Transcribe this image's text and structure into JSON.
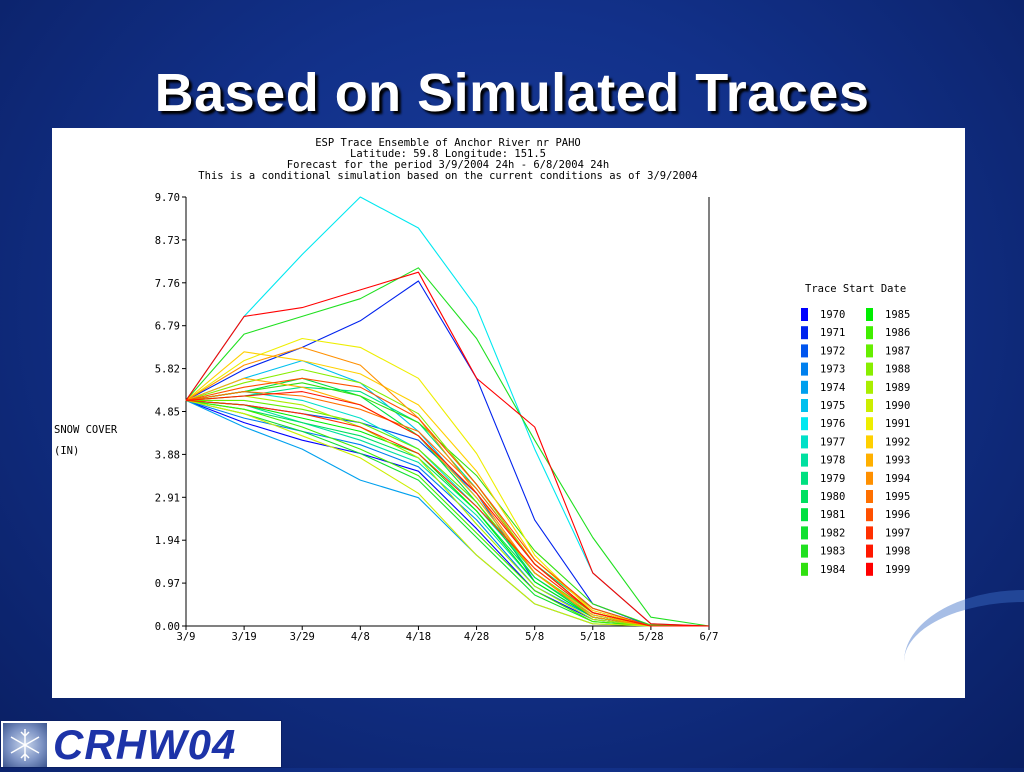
{
  "slide": {
    "title": "Based on Simulated Traces",
    "footer_logo": "CRHW04",
    "snowflake_icon": "snowflake-icon"
  },
  "colors": {
    "background": "#12318a",
    "title": "#ffffff",
    "logo_text": "#1d33a8"
  },
  "chart_data": {
    "type": "line",
    "title_lines": [
      "ESP Trace Ensemble of Anchor River nr PAHO",
      "Latitude: 59.8    Longitude:  151.5",
      "Forecast for the period 3/9/2004 24h - 6/8/2004 24h",
      "This is a conditional simulation based on the current conditions as of 3/9/2004"
    ],
    "ylabel_lines": [
      "SNOW COVER",
      "(IN)"
    ],
    "xlabel": "",
    "x_ticks": [
      "3/9",
      "3/19",
      "3/29",
      "4/8",
      "4/18",
      "4/28",
      "5/8",
      "5/18",
      "5/28",
      "6/7"
    ],
    "y_ticks": [
      "0.00",
      "0.97",
      "1.94",
      "2.91",
      "3.88",
      "4.85",
      "5.82",
      "6.79",
      "7.76",
      "8.73",
      "9.70"
    ],
    "xlim": [
      "3/9",
      "6/7"
    ],
    "ylim": [
      0,
      9.7
    ],
    "grid": false,
    "legend_title": "Trace Start Date",
    "legend_position": "right",
    "x_dates": [
      "3/9",
      "3/19",
      "3/29",
      "4/8",
      "4/18",
      "4/28",
      "5/8",
      "5/18",
      "5/28",
      "6/7"
    ],
    "series": [
      {
        "name": "1970",
        "color": "#0000ff",
        "values": [
          5.1,
          4.6,
          4.2,
          3.9,
          3.5,
          2.2,
          0.8,
          0.15,
          0.0,
          0.0
        ]
      },
      {
        "name": "1971",
        "color": "#0022ee",
        "values": [
          5.1,
          5.8,
          6.3,
          6.9,
          7.8,
          5.6,
          2.4,
          0.5,
          0.0,
          0.0
        ]
      },
      {
        "name": "1972",
        "color": "#0055ee",
        "values": [
          5.1,
          5.0,
          4.8,
          4.6,
          4.2,
          3.0,
          1.0,
          0.2,
          0.0,
          0.0
        ]
      },
      {
        "name": "1973",
        "color": "#0080ee",
        "values": [
          5.1,
          4.7,
          4.4,
          4.1,
          3.6,
          2.4,
          0.9,
          0.2,
          0.0,
          0.0
        ]
      },
      {
        "name": "1974",
        "color": "#00a0ee",
        "values": [
          5.1,
          4.5,
          4.0,
          3.3,
          2.9,
          1.6,
          0.5,
          0.05,
          0.0,
          0.0
        ]
      },
      {
        "name": "1975",
        "color": "#00c0ee",
        "values": [
          5.1,
          5.6,
          6.0,
          5.5,
          4.4,
          2.9,
          1.2,
          0.3,
          0.0,
          0.0
        ]
      },
      {
        "name": "1976",
        "color": "#00e8f0",
        "values": [
          5.1,
          7.0,
          8.4,
          9.7,
          9.0,
          7.2,
          4.0,
          1.2,
          0.05,
          0.0
        ]
      },
      {
        "name": "1977",
        "color": "#00e0c8",
        "values": [
          5.1,
          5.3,
          5.1,
          4.7,
          4.0,
          2.7,
          1.2,
          0.3,
          0.0,
          0.0
        ]
      },
      {
        "name": "1978",
        "color": "#00e0a0",
        "values": [
          5.1,
          5.0,
          4.6,
          4.2,
          3.7,
          2.5,
          1.0,
          0.2,
          0.0,
          0.0
        ]
      },
      {
        "name": "1979",
        "color": "#00e080",
        "values": [
          5.1,
          5.2,
          5.4,
          5.3,
          4.6,
          3.1,
          1.4,
          0.4,
          0.0,
          0.0
        ]
      },
      {
        "name": "1980",
        "color": "#00e060",
        "values": [
          5.1,
          4.9,
          4.6,
          4.3,
          3.8,
          2.6,
          1.1,
          0.25,
          0.0,
          0.0
        ]
      },
      {
        "name": "1981",
        "color": "#00e040",
        "values": [
          5.1,
          5.3,
          5.6,
          5.2,
          4.3,
          2.8,
          1.1,
          0.2,
          0.0,
          0.0
        ]
      },
      {
        "name": "1982",
        "color": "#10e030",
        "values": [
          5.1,
          4.8,
          4.4,
          3.9,
          3.3,
          2.0,
          0.7,
          0.1,
          0.0,
          0.0
        ]
      },
      {
        "name": "1983",
        "color": "#20e020",
        "values": [
          5.1,
          6.6,
          7.0,
          7.4,
          8.1,
          6.5,
          4.2,
          2.0,
          0.2,
          0.0
        ]
      },
      {
        "name": "1984",
        "color": "#30e010",
        "values": [
          5.1,
          5.3,
          5.5,
          5.2,
          4.6,
          3.4,
          1.7,
          0.5,
          0.02,
          0.0
        ]
      },
      {
        "name": "1985",
        "color": "#00ee00",
        "values": [
          5.1,
          5.0,
          4.7,
          4.4,
          3.9,
          2.6,
          1.0,
          0.2,
          0.0,
          0.0
        ]
      },
      {
        "name": "1986",
        "color": "#40ee00",
        "values": [
          5.1,
          4.9,
          4.5,
          4.0,
          3.4,
          2.1,
          0.8,
          0.1,
          0.0,
          0.0
        ]
      },
      {
        "name": "1987",
        "color": "#66ee00",
        "values": [
          5.1,
          5.1,
          4.9,
          4.6,
          4.0,
          2.8,
          1.2,
          0.3,
          0.0,
          0.0
        ]
      },
      {
        "name": "1988",
        "color": "#88ee00",
        "values": [
          5.1,
          5.5,
          5.8,
          5.5,
          4.8,
          3.2,
          1.4,
          0.3,
          0.0,
          0.0
        ]
      },
      {
        "name": "1989",
        "color": "#aaee00",
        "values": [
          5.1,
          5.2,
          5.0,
          4.5,
          3.8,
          2.3,
          0.9,
          0.15,
          0.0,
          0.0
        ]
      },
      {
        "name": "1990",
        "color": "#ccee00",
        "values": [
          5.1,
          4.8,
          4.3,
          3.8,
          3.0,
          1.6,
          0.5,
          0.05,
          0.0,
          0.0
        ]
      },
      {
        "name": "1991",
        "color": "#eeee00",
        "values": [
          5.1,
          6.0,
          6.5,
          6.3,
          5.6,
          3.9,
          1.6,
          0.3,
          0.0,
          0.0
        ]
      },
      {
        "name": "1992",
        "color": "#ffd000",
        "values": [
          5.1,
          6.2,
          6.0,
          5.7,
          5.0,
          3.5,
          1.5,
          0.35,
          0.0,
          0.0
        ]
      },
      {
        "name": "1993",
        "color": "#ffb000",
        "values": [
          5.1,
          5.6,
          5.4,
          5.0,
          4.3,
          2.9,
          1.2,
          0.25,
          0.0,
          0.0
        ]
      },
      {
        "name": "1994",
        "color": "#ff9000",
        "values": [
          5.1,
          5.9,
          6.3,
          5.9,
          4.7,
          3.0,
          1.2,
          0.2,
          0.0,
          0.0
        ]
      },
      {
        "name": "1995",
        "color": "#ff7000",
        "values": [
          5.1,
          5.3,
          5.2,
          4.9,
          4.4,
          3.1,
          1.4,
          0.3,
          0.0,
          0.0
        ]
      },
      {
        "name": "1996",
        "color": "#ff5000",
        "values": [
          5.1,
          5.4,
          5.6,
          5.4,
          4.7,
          3.2,
          1.5,
          0.4,
          0.0,
          0.0
        ]
      },
      {
        "name": "1997",
        "color": "#ff3000",
        "values": [
          5.1,
          5.0,
          4.8,
          4.5,
          3.9,
          2.7,
          1.3,
          0.3,
          0.0,
          0.0
        ]
      },
      {
        "name": "1998",
        "color": "#ff1800",
        "values": [
          5.1,
          5.2,
          5.3,
          5.0,
          4.3,
          3.0,
          1.4,
          0.3,
          0.0,
          0.0
        ]
      },
      {
        "name": "1999",
        "color": "#ff0000",
        "values": [
          5.1,
          7.0,
          7.2,
          7.6,
          8.0,
          5.6,
          4.5,
          1.2,
          0.05,
          0.0
        ]
      }
    ]
  }
}
